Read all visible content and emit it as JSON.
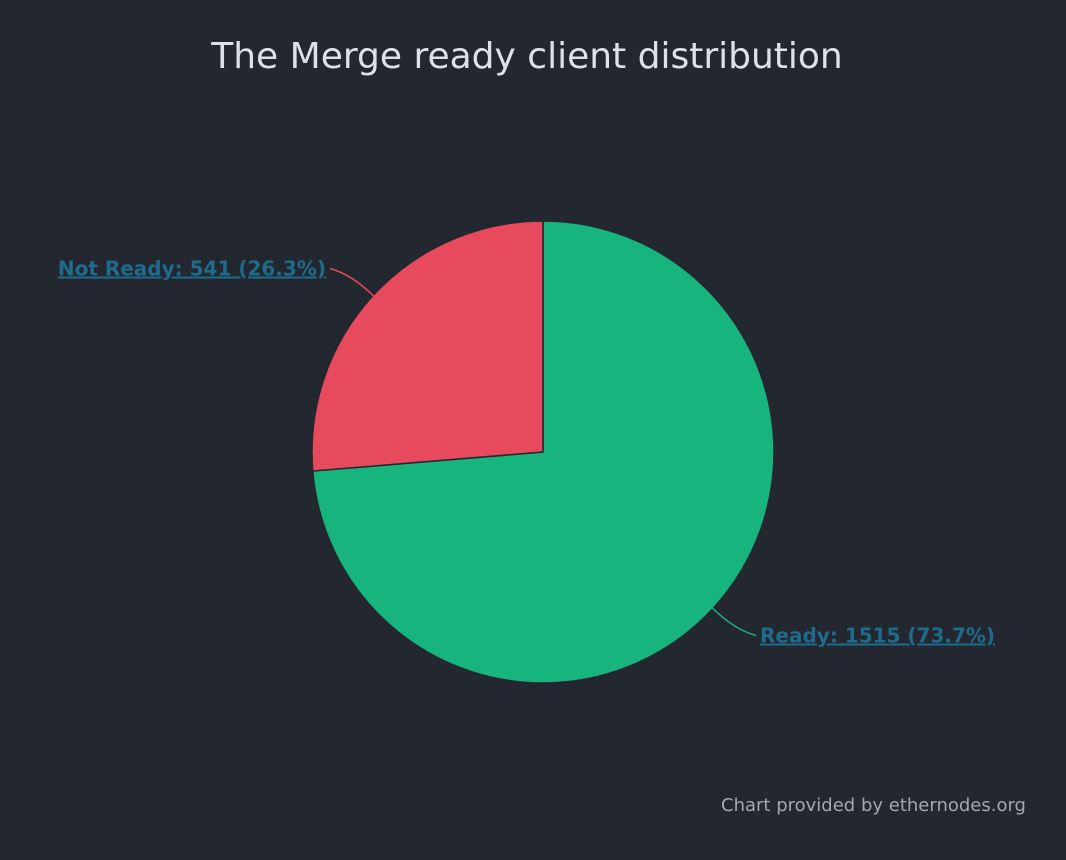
{
  "chart_data": {
    "type": "pie",
    "title": "The Merge ready client distribution",
    "slices": [
      {
        "label": "Ready: 1515 (73.7%)",
        "name": "Ready",
        "value": 1515,
        "percent": 73.7,
        "color": "#17b47e"
      },
      {
        "label": "Not Ready: 541 (26.3%)",
        "name": "Not Ready",
        "value": 541,
        "percent": 26.3,
        "color": "#e74a5c"
      }
    ],
    "start_angle_deg": 0,
    "direction": "clockwise",
    "label_color": "#1e6b8c",
    "credit": "Chart provided by ethernodes.org"
  }
}
